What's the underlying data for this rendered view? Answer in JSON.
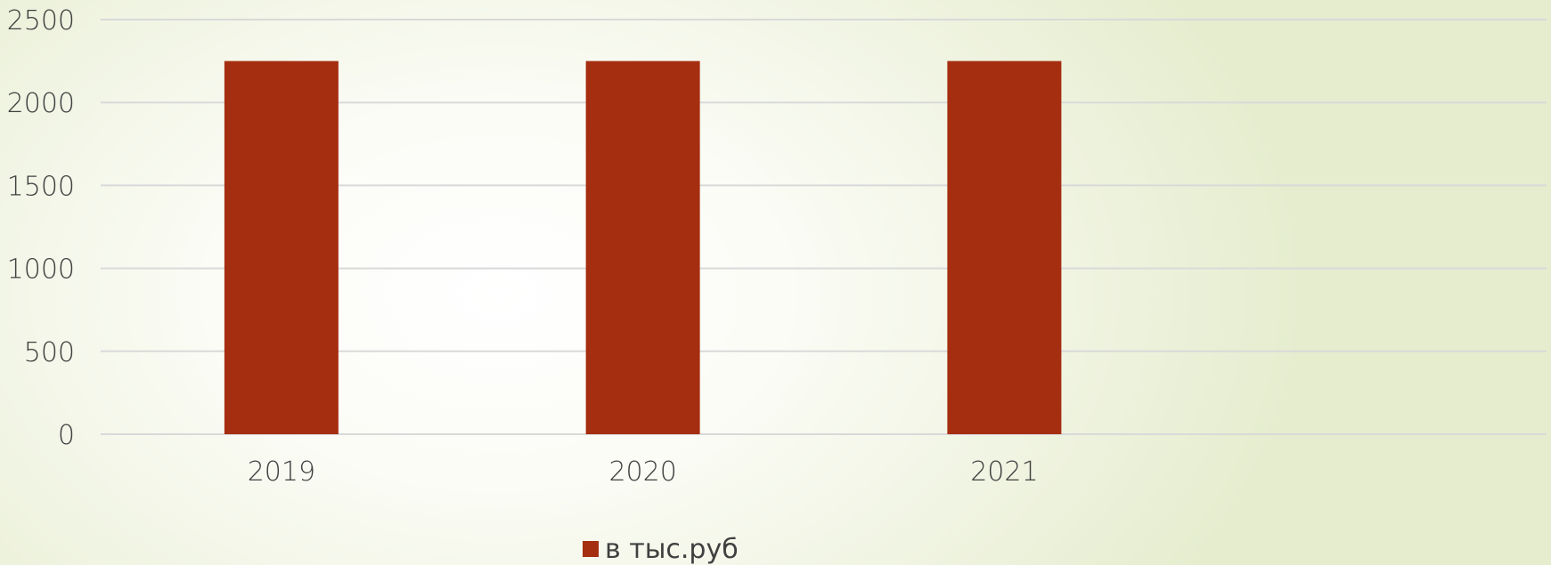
{
  "chart_data": {
    "type": "bar",
    "categories": [
      "2019",
      "2020",
      "2021"
    ],
    "series": [
      {
        "name": "в тыс.руб",
        "values": [
          2250,
          2250,
          2250
        ],
        "color": "#a52e10"
      }
    ],
    "ylim": [
      0,
      2500
    ],
    "yticks": [
      0,
      500,
      1000,
      1500,
      2000,
      2500
    ],
    "grid": true,
    "gridColor": "#d9d9d9",
    "legend": "bottom-center",
    "title": "",
    "xlabel": "",
    "ylabel": ""
  }
}
